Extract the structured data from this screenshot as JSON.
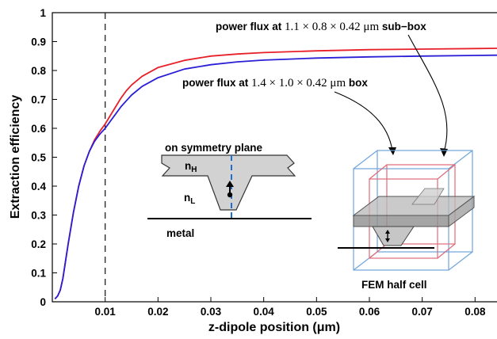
{
  "chart_data": {
    "type": "line",
    "xlabel": "z-dipole position (μm)",
    "ylabel": "Extraction efficiency",
    "xlim": [
      0,
      0.09
    ],
    "ylim": [
      0,
      1
    ],
    "x_ticks": [
      {
        "value": 0.01,
        "label": "0.01"
      },
      {
        "value": 0.02,
        "label": "0.02"
      },
      {
        "value": 0.03,
        "label": "0.03"
      },
      {
        "value": 0.04,
        "label": "0.04"
      },
      {
        "value": 0.05,
        "label": "0.05"
      },
      {
        "value": 0.06,
        "label": "0.06"
      },
      {
        "value": 0.07,
        "label": "0.07"
      },
      {
        "value": 0.08,
        "label": "0.08"
      }
    ],
    "y_ticks": [
      {
        "value": 0,
        "label": "0"
      },
      {
        "value": 0.1,
        "label": "0.1"
      },
      {
        "value": 0.2,
        "label": "0.2"
      },
      {
        "value": 0.3,
        "label": "0.3"
      },
      {
        "value": 0.4,
        "label": "0.4"
      },
      {
        "value": 0.5,
        "label": "0.5"
      },
      {
        "value": 0.6,
        "label": "0.6"
      },
      {
        "value": 0.7,
        "label": "0.7"
      },
      {
        "value": 0.8,
        "label": "0.8"
      },
      {
        "value": 0.9,
        "label": "0.9"
      },
      {
        "value": 1,
        "label": "1"
      }
    ],
    "vline_x": 0.01,
    "grid": false,
    "series": [
      {
        "color": "#e8202a",
        "x": [
          0.0005,
          0.001,
          0.0015,
          0.002,
          0.003,
          0.004,
          0.005,
          0.006,
          0.007,
          0.008,
          0.009,
          0.01,
          0.011,
          0.012,
          0.013,
          0.014,
          0.015,
          0.017,
          0.02,
          0.025,
          0.03,
          0.035,
          0.04,
          0.05,
          0.06,
          0.07,
          0.08,
          0.09
        ],
        "y": [
          0.01,
          0.02,
          0.04,
          0.08,
          0.2,
          0.31,
          0.4,
          0.47,
          0.52,
          0.56,
          0.59,
          0.615,
          0.645,
          0.675,
          0.705,
          0.73,
          0.75,
          0.78,
          0.81,
          0.835,
          0.85,
          0.857,
          0.862,
          0.868,
          0.872,
          0.874,
          0.876,
          0.878
        ]
      },
      {
        "color": "#2a1fd6",
        "x": [
          0.0005,
          0.001,
          0.0015,
          0.002,
          0.003,
          0.004,
          0.005,
          0.006,
          0.007,
          0.008,
          0.009,
          0.01,
          0.011,
          0.012,
          0.013,
          0.014,
          0.015,
          0.017,
          0.02,
          0.025,
          0.03,
          0.035,
          0.04,
          0.05,
          0.06,
          0.07,
          0.08,
          0.09
        ],
        "y": [
          0.01,
          0.02,
          0.04,
          0.08,
          0.2,
          0.31,
          0.4,
          0.47,
          0.52,
          0.555,
          0.58,
          0.6,
          0.625,
          0.65,
          0.675,
          0.695,
          0.715,
          0.745,
          0.775,
          0.805,
          0.82,
          0.83,
          0.836,
          0.843,
          0.847,
          0.85,
          0.852,
          0.854
        ]
      }
    ],
    "annotations": {
      "subbox": {
        "prefix": "power flux at ",
        "math": "1.1 × 0.8 × 0.42 μm",
        "suffix": " sub−box"
      },
      "box": {
        "prefix": "power flux at ",
        "math": "1.4 × 1.0 × 0.42 μm",
        "suffix": " box"
      }
    },
    "inset_left": {
      "title": "on symmetry plane",
      "n_high": {
        "base": "n",
        "sub": "H"
      },
      "n_low": {
        "base": "n",
        "sub": "L"
      },
      "metal": "metal"
    },
    "inset_right": {
      "caption": "FEM half cell"
    },
    "colors": {
      "red_curve": "#e8202a",
      "blue_curve": "#2a1fd6",
      "fem_red": "#e06a78",
      "fem_blue": "#6fa4dc",
      "dash_blue": "#1a6fd0"
    }
  }
}
